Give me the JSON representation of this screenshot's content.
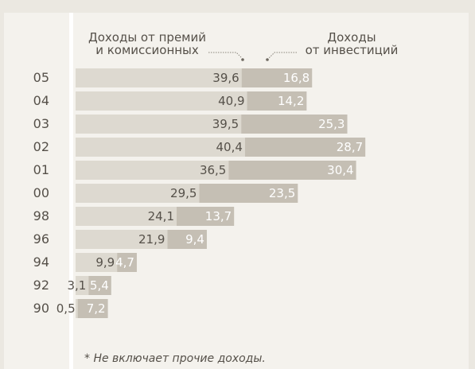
{
  "chart_data": {
    "type": "bar",
    "stacked": true,
    "orientation": "horizontal",
    "categories": [
      "05",
      "04",
      "03",
      "02",
      "01",
      "00",
      "98",
      "96",
      "94",
      "92",
      "90"
    ],
    "series": [
      {
        "name": "Доходы от премий и комиссионных",
        "values": [
          39.6,
          40.9,
          39.5,
          40.4,
          36.5,
          29.5,
          24.1,
          21.9,
          9.9,
          3.1,
          0.5
        ],
        "labels": [
          "39,6",
          "40,9",
          "39,5",
          "40,4",
          "36,5",
          "29,5",
          "24,1",
          "21,9",
          "9,9",
          "3,1",
          "0,5"
        ],
        "color": "#ddd9d0"
      },
      {
        "name": "Доходы от инвестиций",
        "values": [
          16.8,
          14.2,
          25.3,
          28.7,
          30.4,
          23.5,
          13.7,
          9.4,
          4.7,
          5.4,
          7.2
        ],
        "labels": [
          "16,8",
          "14,2",
          "25,3",
          "28,7",
          "30,4",
          "23,5",
          "13,7",
          "9,4",
          "4,7",
          "5,4",
          "7,2"
        ],
        "color": "#c5bfb4"
      }
    ],
    "legend": [
      "Доходы от премий и комиссионных",
      "Доходы от инвестиций"
    ],
    "legend_left_lines": [
      "Доходы от премий",
      "и комиссионных"
    ],
    "legend_right_lines": [
      "Доходы",
      "от инвестиций"
    ],
    "title": "",
    "xlabel": "",
    "ylabel": "",
    "footnote": "* Не включает прочие доходы.",
    "colors": {
      "background": "#ebe8e1",
      "panel": "#f4f2ed",
      "text": "#555049"
    }
  }
}
